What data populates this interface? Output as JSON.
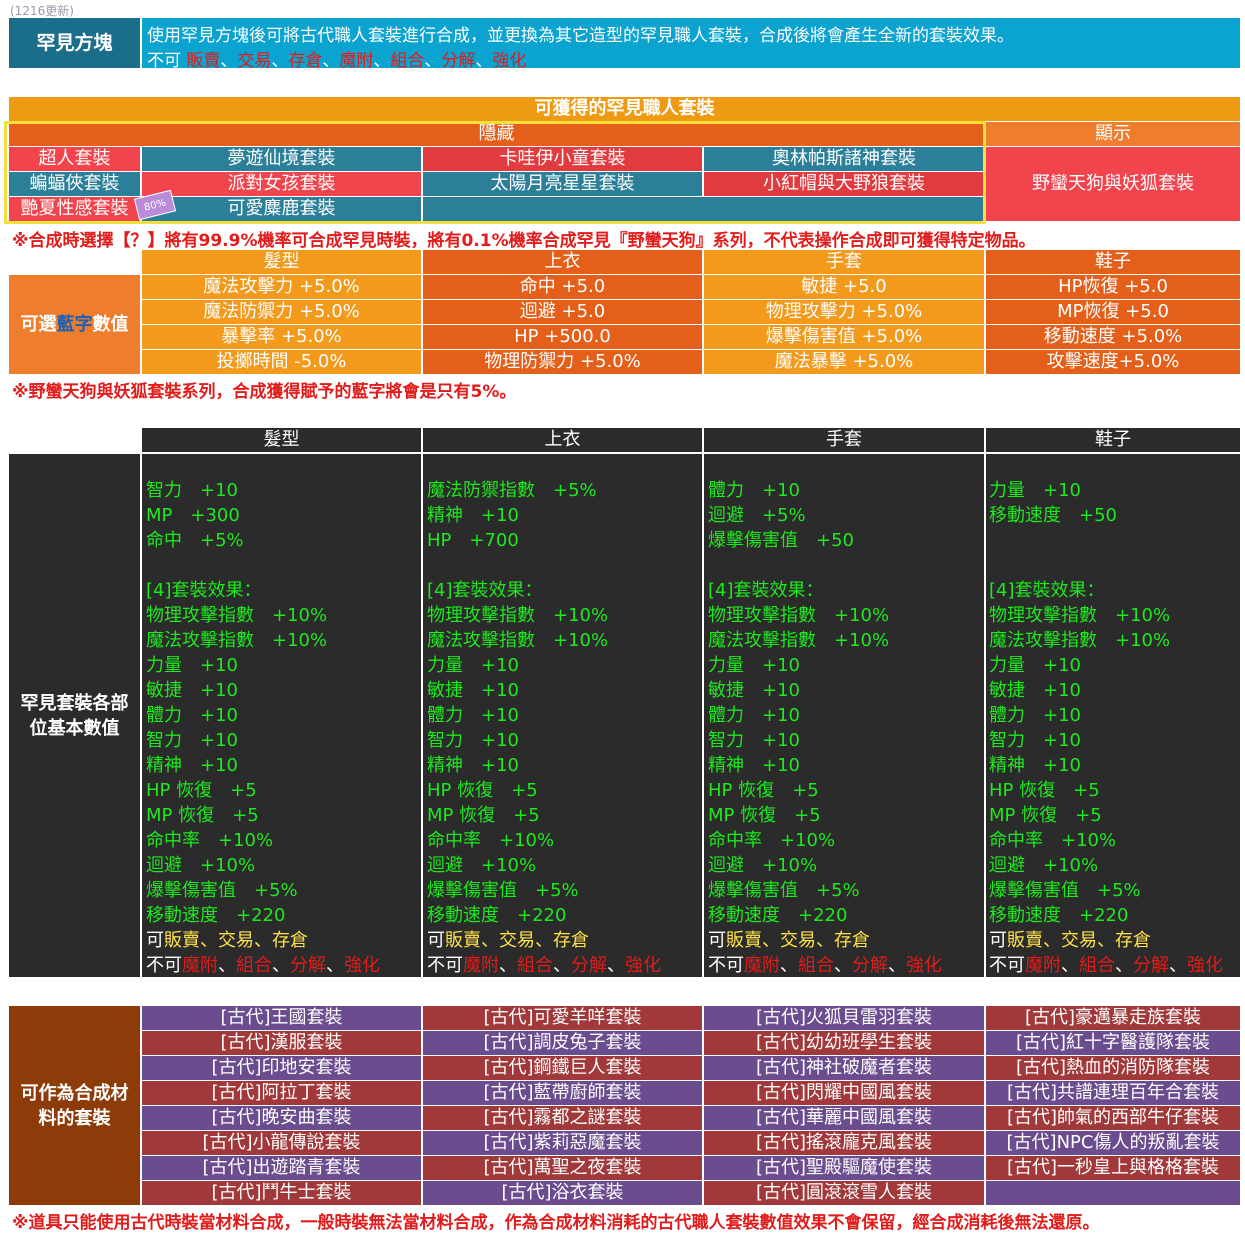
{
  "update_tag": "(1216更新)",
  "header": {
    "title": "罕見方塊",
    "desc_line1": "使用罕見方塊後可將古代職人套裝進行合成，並更換為其它造型的罕見職人套裝，合成後將會產生全新的套裝效果。",
    "desc_line2_prefix": "不可",
    "desc_line2_items": [
      "販賣",
      "、",
      "交易",
      "、",
      "存倉",
      "、",
      "魔附",
      "、",
      "組合",
      "、",
      "分解",
      "、",
      "強化"
    ]
  },
  "obtainable": {
    "title": "可獲得的罕見職人套裝",
    "hidden_label": "隱藏",
    "shown_label": "顯示",
    "hidden_sets": [
      [
        "超人套裝",
        "夢遊仙境套裝",
        "卡哇伊小童套裝",
        "奧林帕斯諸神套裝"
      ],
      [
        "蝙蝠俠套裝",
        "派對女孩套裝",
        "太陽月亮星星套裝",
        "小紅帽與大野狼套裝"
      ],
      [
        "艷夏性感套裝",
        "可愛麋鹿套裝"
      ]
    ],
    "badge": "80%",
    "shown_set": "野蠻天狗與妖狐套裝",
    "note": "※合成時選擇【？】將有99.9%機率可合成罕見時裝，將有0.1%機率合成罕見『野蠻天狗』系列，不代表操作合成即可獲得特定物品。"
  },
  "blue_stats": {
    "columns": [
      "髮型",
      "上衣",
      "手套",
      "鞋子"
    ],
    "row_label_prefix": "可選",
    "row_label_highlight": "藍字",
    "row_label_suffix": "數值",
    "rows": [
      [
        "魔法攻擊力 +5.0%",
        "命中 +5.0",
        "敏捷 +5.0",
        "HP恢復 +5.0"
      ],
      [
        "魔法防禦力 +5.0%",
        "迴避 +5.0",
        "物理攻擊力 +5.0%",
        "MP恢復 +5.0"
      ],
      [
        "暴擊率 +5.0%",
        "HP +500.0",
        "爆擊傷害值 +5.0%",
        "移動速度 +5.0%"
      ],
      [
        "投擲時間 -5.0%",
        "物理防禦力 +5.0%",
        "魔法暴擊 +5.0%",
        "攻擊速度+5.0%"
      ]
    ],
    "note": "※野蠻天狗與妖狐套裝系列，合成獲得賦予的藍字將會是只有5%。"
  },
  "base_stats": {
    "columns": [
      "髮型",
      "上衣",
      "手套",
      "鞋子"
    ],
    "row_label_line1": "罕見套裝各部",
    "row_label_line2": "位基本數值",
    "parts": [
      [
        "智力　+10",
        "MP　+300",
        "命中　+5%"
      ],
      [
        "魔法防禦指數　+5%",
        "精神　+10",
        "HP　+700"
      ],
      [
        "體力　+10",
        "迴避　+5%",
        "爆擊傷害值　+50"
      ],
      [
        "力量　+10",
        "移動速度　+50"
      ]
    ],
    "set_effect": [
      "[4]套裝效果：",
      "物理攻擊指數　+10%",
      "魔法攻擊指數　+10%",
      "力量　+10",
      "敏捷　+10",
      "體力　+10",
      "智力　+10",
      "精神　+10",
      "HP 恢復　+5",
      "MP 恢復　+5",
      "命中率　+10%",
      "迴避　+10%",
      "爆擊傷害值　+5%",
      "移動速度　+220"
    ],
    "can_prefix": "可",
    "can_items": [
      "販賣",
      "、交易",
      "、存倉"
    ],
    "cannot_prefix": "不可",
    "cannot_items": [
      "魔附",
      "、",
      "組合",
      "、",
      "分解",
      "、",
      "強化"
    ]
  },
  "materials": {
    "row_label_line1": "可作為合成材",
    "row_label_line2": "料的套裝",
    "rows": [
      [
        "[古代]王國套裝",
        "[古代]可愛羊咩套裝",
        "[古代]火狐貝雷羽套裝",
        "[古代]豪邁暴走族套裝"
      ],
      [
        "[古代]漢服套裝",
        "[古代]調皮兔子套裝",
        "[古代]幼幼班學生套裝",
        "[古代]紅十字醫護隊套裝"
      ],
      [
        "[古代]印地安套裝",
        "[古代]鋼鐵巨人套裝",
        "[古代]神社破魔者套裝",
        "[古代]熱血的消防隊套裝"
      ],
      [
        "[古代]阿拉丁套裝",
        "[古代]藍帶廚師套裝",
        "[古代]閃耀中國風套裝",
        "[古代]共譜連理百年合套裝"
      ],
      [
        "[古代]晚安曲套裝",
        "[古代]霧都之謎套裝",
        "[古代]華麗中國風套裝",
        "[古代]帥氣的西部牛仔套裝"
      ],
      [
        "[古代]小龍傳說套裝",
        "[古代]紫莉惡魔套裝",
        "[古代]搖滾龐克風套裝",
        "[古代]NPC傷人的叛亂套裝"
      ],
      [
        "[古代]出遊踏青套裝",
        "[古代]萬聖之夜套裝",
        "[古代]聖殿驅魔使套裝",
        "[古代]一秒皇上與格格套裝"
      ],
      [
        "[古代]鬥牛士套裝",
        "[古代]浴衣套裝",
        "[古代]圓滾滾雪人套裝",
        ""
      ]
    ],
    "note": "※道具只能使用古代時裝當材料合成，一般時裝無法當材料合成，作為合成材料消耗的古代職人套裝數值效果不會保留，經合成消耗後無法還原。"
  }
}
